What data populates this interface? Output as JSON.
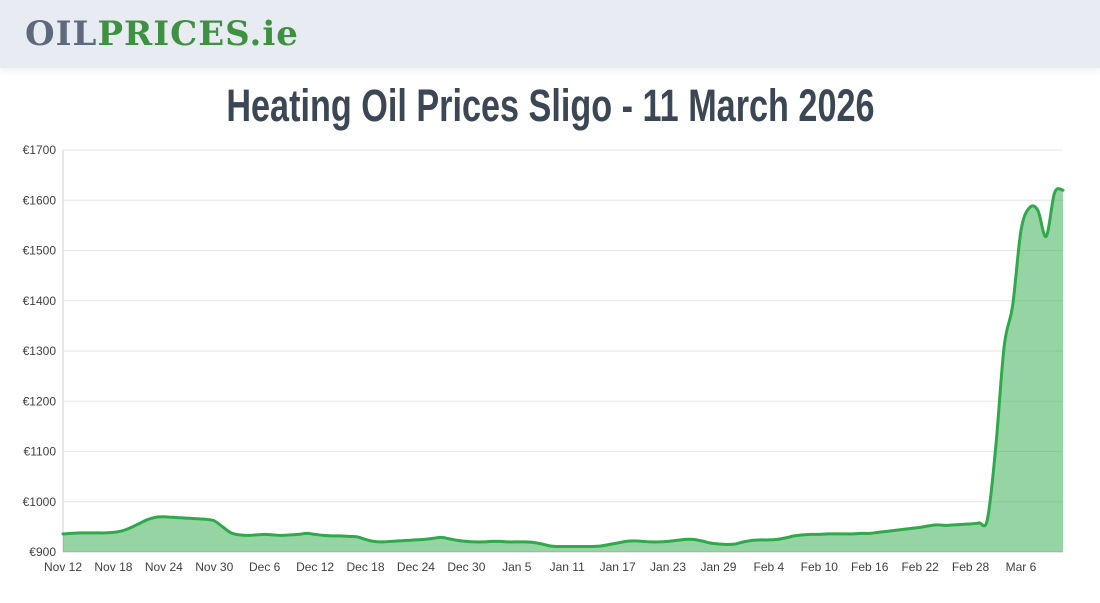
{
  "colors": {
    "header_bg": "#e9ebf3",
    "logo_gray": "#5d6a7d",
    "logo_green": "#3f9142",
    "title_color": "#3b4754",
    "line": "#2fa94a",
    "fill": "#2fa94a",
    "fill_opacity": 0.5,
    "grid": "#e6e6e6",
    "axis": "#cfcfcf",
    "tick_text": "#3f3f3f"
  },
  "header": {
    "logo": {
      "part1": "OIL",
      "part2": "PRICES",
      "part3": ".ie"
    }
  },
  "main": {
    "title": "Heating Oil Prices Sligo - 11 March 2026"
  },
  "chart_data": {
    "type": "area",
    "title": "Heating Oil Prices Sligo - 11 March 2026",
    "xlabel": "",
    "ylabel": "",
    "currency_prefix": "€",
    "ylim": [
      900,
      1700
    ],
    "y_ticks": [
      900,
      1000,
      1100,
      1200,
      1300,
      1400,
      1500,
      1600,
      1700
    ],
    "x_tick_step": 6,
    "x_tick_labels": [
      "Nov 12",
      "Nov 18",
      "Nov 24",
      "Nov 30",
      "Dec 6",
      "Dec 12",
      "Dec 18",
      "Dec 24",
      "Dec 30",
      "Jan 5",
      "Jan 11",
      "Jan 17",
      "Jan 23",
      "Jan 29",
      "Feb 4",
      "Feb 10",
      "Feb 16",
      "Feb 22",
      "Feb 28",
      "Mar 6"
    ],
    "grid": true,
    "legend": false,
    "dates": [
      "Nov 12",
      "Nov 13",
      "Nov 14",
      "Nov 15",
      "Nov 16",
      "Nov 17",
      "Nov 18",
      "Nov 19",
      "Nov 20",
      "Nov 21",
      "Nov 22",
      "Nov 23",
      "Nov 24",
      "Nov 25",
      "Nov 26",
      "Nov 27",
      "Nov 28",
      "Nov 29",
      "Nov 30",
      "Dec 1",
      "Dec 2",
      "Dec 3",
      "Dec 4",
      "Dec 5",
      "Dec 6",
      "Dec 7",
      "Dec 8",
      "Dec 9",
      "Dec 10",
      "Dec 11",
      "Dec 12",
      "Dec 13",
      "Dec 14",
      "Dec 15",
      "Dec 16",
      "Dec 17",
      "Dec 18",
      "Dec 19",
      "Dec 20",
      "Dec 21",
      "Dec 22",
      "Dec 23",
      "Dec 24",
      "Dec 25",
      "Dec 26",
      "Dec 27",
      "Dec 28",
      "Dec 29",
      "Dec 30",
      "Dec 31",
      "Jan 1",
      "Jan 2",
      "Jan 3",
      "Jan 4",
      "Jan 5",
      "Jan 6",
      "Jan 7",
      "Jan 8",
      "Jan 9",
      "Jan 10",
      "Jan 11",
      "Jan 12",
      "Jan 13",
      "Jan 14",
      "Jan 15",
      "Jan 16",
      "Jan 17",
      "Jan 18",
      "Jan 19",
      "Jan 20",
      "Jan 21",
      "Jan 22",
      "Jan 23",
      "Jan 24",
      "Jan 25",
      "Jan 26",
      "Jan 27",
      "Jan 28",
      "Jan 29",
      "Jan 30",
      "Jan 31",
      "Feb 1",
      "Feb 2",
      "Feb 3",
      "Feb 4",
      "Feb 5",
      "Feb 6",
      "Feb 7",
      "Feb 8",
      "Feb 9",
      "Feb 10",
      "Feb 11",
      "Feb 12",
      "Feb 13",
      "Feb 14",
      "Feb 15",
      "Feb 16",
      "Feb 17",
      "Feb 18",
      "Feb 19",
      "Feb 20",
      "Feb 21",
      "Feb 22",
      "Feb 23",
      "Feb 24",
      "Feb 25",
      "Feb 26",
      "Feb 27",
      "Feb 28",
      "Mar 1",
      "Mar 2",
      "Mar 3",
      "Mar 4",
      "Mar 5",
      "Mar 6",
      "Mar 7",
      "Mar 8",
      "Mar 9",
      "Mar 10",
      "Mar 11"
    ],
    "values": [
      936,
      937,
      938,
      938,
      938,
      938,
      939,
      942,
      948,
      956,
      964,
      969,
      970,
      969,
      968,
      967,
      966,
      965,
      962,
      950,
      938,
      934,
      933,
      934,
      935,
      934,
      933,
      934,
      935,
      937,
      935,
      933,
      932,
      932,
      931,
      930,
      925,
      921,
      920,
      921,
      922,
      923,
      924,
      925,
      927,
      929,
      926,
      923,
      921,
      920,
      920,
      921,
      921,
      920,
      920,
      920,
      919,
      916,
      912,
      911,
      911,
      911,
      911,
      911,
      912,
      915,
      918,
      921,
      922,
      921,
      920,
      920,
      921,
      923,
      925,
      925,
      922,
      918,
      916,
      915,
      916,
      920,
      923,
      924,
      924,
      925,
      928,
      932,
      934,
      935,
      935,
      936,
      936,
      936,
      936,
      937,
      937,
      939,
      941,
      943,
      945,
      947,
      949,
      952,
      954,
      953,
      954,
      955,
      956,
      958,
      965,
      1110,
      1310,
      1390,
      1540,
      1585,
      1580,
      1528,
      1615,
      1620
    ]
  }
}
